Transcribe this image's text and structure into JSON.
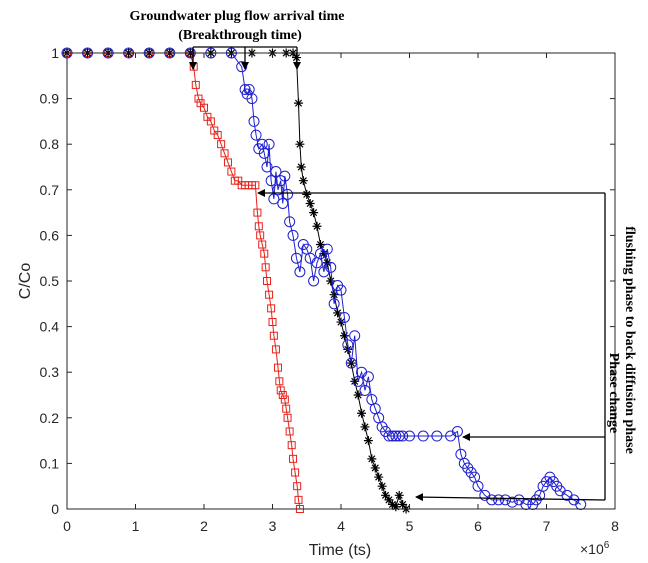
{
  "chart_data": {
    "type": "line",
    "xlabel": "Time (ts)",
    "ylabel": "C/Co",
    "x_multiplier_label": "×10",
    "x_multiplier_exp": "6",
    "xlim": [
      0,
      8
    ],
    "ylim": [
      0,
      1
    ],
    "x_ticks": [
      0,
      1,
      2,
      3,
      4,
      5,
      6,
      7,
      8
    ],
    "y_ticks": [
      0,
      0.1,
      0.2,
      0.3,
      0.4,
      0.5,
      0.6,
      0.7,
      0.8,
      0.9,
      1
    ],
    "grid": false,
    "annotations": {
      "top_line1": "Groundwater plug flow arrival time",
      "top_line2": "(Breakthrough time)",
      "right_line1": "Phase change",
      "right_line2": "flushing phase to back diffusion phase"
    },
    "series": [
      {
        "color": "#e8211b",
        "marker": "square",
        "x": [
          0,
          0.3,
          0.6,
          0.9,
          1.2,
          1.5,
          1.8,
          1.85,
          1.88,
          1.92,
          1.95,
          2.0,
          2.05,
          2.1,
          2.15,
          2.2,
          2.25,
          2.3,
          2.35,
          2.4,
          2.45,
          2.5,
          2.55,
          2.6,
          2.65,
          2.7,
          2.75,
          2.78,
          2.8,
          2.82,
          2.85,
          2.88,
          2.9,
          2.92,
          2.95,
          2.98,
          3.0,
          3.02,
          3.05,
          3.08,
          3.1,
          3.12,
          3.15,
          3.18,
          3.2,
          3.22,
          3.25,
          3.28,
          3.3,
          3.33,
          3.36,
          3.38,
          3.4
        ],
        "y": [
          1,
          1,
          1,
          1,
          1,
          1,
          1,
          0.97,
          0.93,
          0.9,
          0.89,
          0.88,
          0.86,
          0.85,
          0.83,
          0.82,
          0.8,
          0.78,
          0.76,
          0.74,
          0.72,
          0.72,
          0.71,
          0.71,
          0.71,
          0.71,
          0.71,
          0.65,
          0.62,
          0.6,
          0.58,
          0.56,
          0.53,
          0.5,
          0.47,
          0.44,
          0.41,
          0.38,
          0.35,
          0.31,
          0.28,
          0.26,
          0.25,
          0.24,
          0.22,
          0.2,
          0.17,
          0.14,
          0.11,
          0.08,
          0.05,
          0.02,
          0
        ]
      },
      {
        "color": "#1f1fcf",
        "marker": "circle",
        "x": [
          0,
          0.3,
          0.6,
          0.9,
          1.2,
          1.5,
          1.8,
          2.1,
          2.4,
          2.55,
          2.6,
          2.63,
          2.66,
          2.7,
          2.73,
          2.76,
          2.8,
          2.85,
          2.88,
          2.92,
          2.95,
          2.98,
          3.02,
          3.05,
          3.08,
          3.12,
          3.15,
          3.18,
          3.22,
          3.25,
          3.3,
          3.35,
          3.4,
          3.45,
          3.5,
          3.55,
          3.6,
          3.65,
          3.7,
          3.75,
          3.8,
          3.85,
          3.9,
          3.95,
          4.0,
          4.05,
          4.1,
          4.15,
          4.2,
          4.25,
          4.3,
          4.35,
          4.4,
          4.45,
          4.5,
          4.55,
          4.6,
          4.65,
          4.7,
          4.75,
          4.8,
          4.85,
          4.9,
          5.0,
          5.2,
          5.4,
          5.6,
          5.7,
          5.75,
          5.8,
          5.85,
          5.9,
          5.95,
          6.0,
          6.1,
          6.2,
          6.3,
          6.4,
          6.5,
          6.6,
          6.7,
          6.8,
          6.85,
          6.9,
          6.95,
          7.0,
          7.05,
          7.1,
          7.15,
          7.2,
          7.3,
          7.4,
          7.5
        ],
        "y": [
          1,
          1,
          1,
          1,
          1,
          1,
          1,
          1,
          1,
          0.97,
          0.92,
          0.91,
          0.92,
          0.9,
          0.85,
          0.82,
          0.79,
          0.8,
          0.78,
          0.75,
          0.8,
          0.72,
          0.68,
          0.74,
          0.7,
          0.72,
          0.67,
          0.73,
          0.69,
          0.63,
          0.6,
          0.55,
          0.52,
          0.58,
          0.57,
          0.55,
          0.5,
          0.54,
          0.56,
          0.52,
          0.57,
          0.53,
          0.45,
          0.49,
          0.48,
          0.42,
          0.36,
          0.32,
          0.38,
          0.28,
          0.3,
          0.26,
          0.29,
          0.24,
          0.22,
          0.2,
          0.18,
          0.17,
          0.16,
          0.16,
          0.16,
          0.16,
          0.16,
          0.16,
          0.16,
          0.16,
          0.16,
          0.17,
          0.12,
          0.1,
          0.09,
          0.08,
          0.07,
          0.05,
          0.03,
          0.02,
          0.02,
          0.02,
          0.015,
          0.02,
          0.01,
          0.01,
          0.02,
          0.03,
          0.05,
          0.06,
          0.07,
          0.06,
          0.05,
          0.04,
          0.03,
          0.02,
          0.01
        ]
      },
      {
        "color": "#000000",
        "marker": "star",
        "x": [
          0,
          0.3,
          0.6,
          0.9,
          1.2,
          1.5,
          1.8,
          2.1,
          2.4,
          2.7,
          3.0,
          3.2,
          3.3,
          3.35,
          3.38,
          3.4,
          3.42,
          3.45,
          3.5,
          3.55,
          3.6,
          3.65,
          3.7,
          3.75,
          3.8,
          3.85,
          3.9,
          3.95,
          4.0,
          4.05,
          4.1,
          4.15,
          4.2,
          4.25,
          4.3,
          4.35,
          4.4,
          4.45,
          4.5,
          4.55,
          4.6,
          4.65,
          4.7,
          4.75,
          4.8,
          4.85,
          4.9,
          4.95
        ],
        "y": [
          1,
          1,
          1,
          1,
          1,
          1,
          1,
          1,
          1,
          1,
          1,
          1,
          1,
          0.99,
          0.89,
          0.8,
          0.75,
          0.72,
          0.69,
          0.67,
          0.65,
          0.62,
          0.58,
          0.56,
          0.54,
          0.5,
          0.47,
          0.43,
          0.41,
          0.38,
          0.35,
          0.32,
          0.28,
          0.25,
          0.21,
          0.18,
          0.15,
          0.11,
          0.09,
          0.07,
          0.05,
          0.03,
          0.02,
          0.01,
          0.005,
          0.03,
          0.01,
          0
        ]
      }
    ]
  }
}
